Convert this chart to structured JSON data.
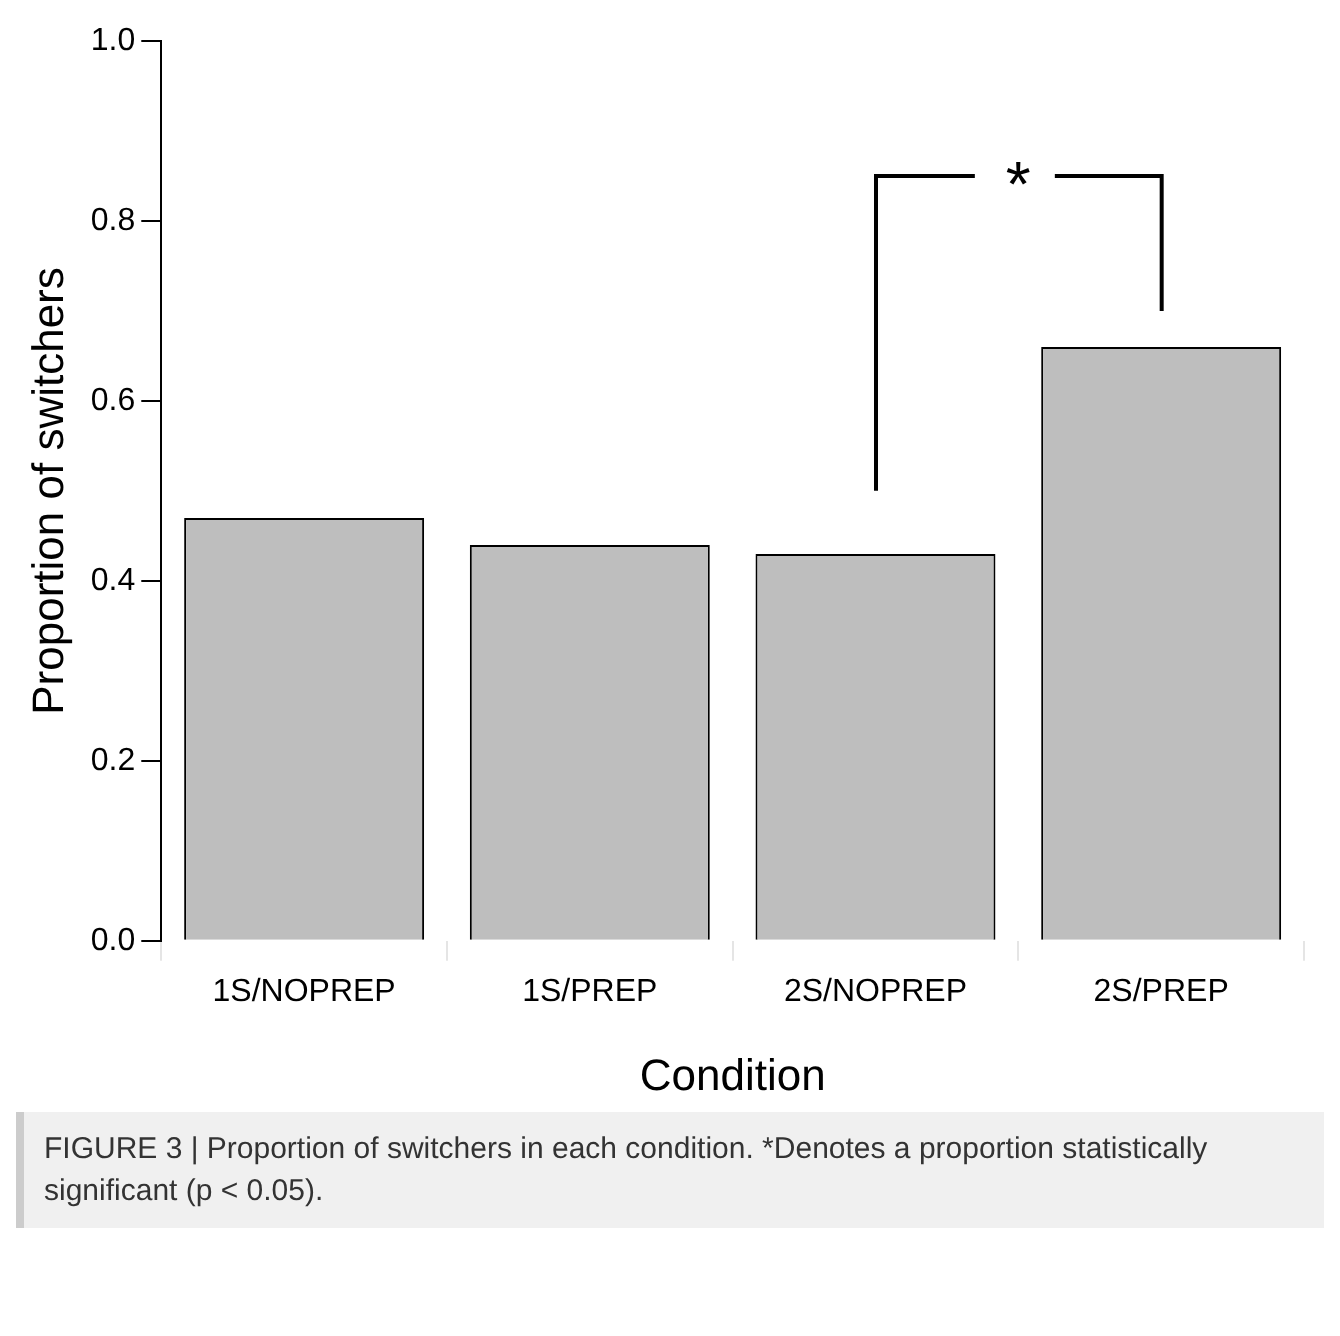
{
  "chart_data": {
    "type": "bar",
    "xlabel": "Condition",
    "ylabel": "Proportion of switchers",
    "categories": [
      "1S/NOPREP",
      "1S/PREP",
      "2S/NOPREP",
      "2S/PREP"
    ],
    "values": [
      0.47,
      0.44,
      0.43,
      0.66
    ],
    "color": "#bebebe",
    "ylim": [
      0,
      1
    ],
    "yticks": [
      {
        "value": 0,
        "label": "0.0"
      },
      {
        "value": 0.2,
        "label": "0.2"
      },
      {
        "value": 0.4,
        "label": "0.4"
      },
      {
        "value": 0.6,
        "label": "0.6"
      },
      {
        "value": 0.8,
        "label": "0.8"
      },
      {
        "value": 1,
        "label": "1.0"
      }
    ],
    "grid": false,
    "annotations": [
      "*",
      "FIGURE 3 | Proportion of switchers in each condition. *Denotes a proportion statistically significant (p < 0.05)."
    ]
  }
}
